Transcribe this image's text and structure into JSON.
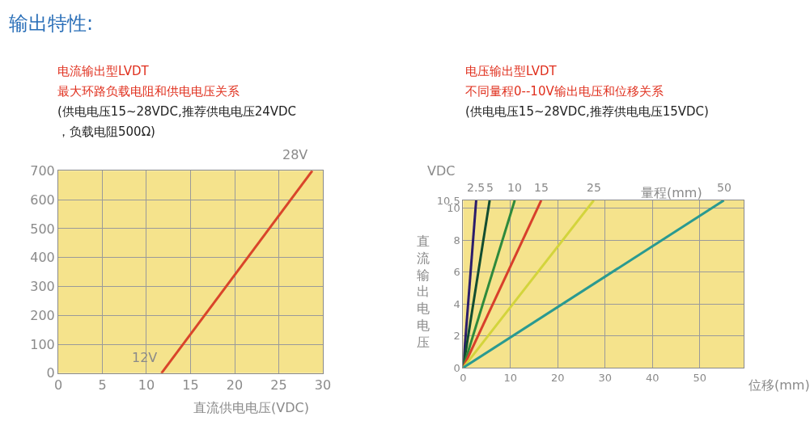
{
  "chart_data": [
    {
      "type": "line",
      "title": "电流输出型LVDT",
      "subtitle": "最大环路负载电阻和供电电压关系",
      "xlabel": "直流供电电压(VDC)",
      "annotations": [
        "输出特性:",
        "(供电电压15~28VDC,推荐供电电压24VDC",
        "，负载电阻500Ω)",
        {
          "text": "12V",
          "x": 11.7,
          "y": 0
        },
        {
          "text": "28V",
          "x": 28.8,
          "y": 700
        }
      ],
      "series": [
        {
          "color": "#d9452a",
          "x": [
            11.7,
            28.8
          ],
          "values": [
            0,
            700
          ]
        }
      ],
      "xlim": [
        0,
        30
      ],
      "xticks": [
        0,
        5,
        10,
        15,
        20,
        25,
        30
      ],
      "ylim": [
        0,
        700
      ],
      "yticks": [
        0,
        100,
        200,
        300,
        400,
        500,
        600,
        700
      ],
      "grid": true,
      "marker": "none",
      "line_style": "solid"
    },
    {
      "type": "line",
      "title": "电压输出型LVDT",
      "subtitle": "不同量程0--10V输出电压和位移关系",
      "xlabel": "位移(mm)",
      "ylabel": "直流输出电电压",
      "annotations": [
        "(供电电压15~28VDC,推荐供电电压15VDC)",
        "VDC",
        "量程(mm)"
      ],
      "series": [
        {
          "name": "2.5",
          "color": "#2b1d6b",
          "x": [
            0,
            2.75
          ],
          "values": [
            0,
            10.5
          ]
        },
        {
          "name": "5",
          "color": "#124d30",
          "x": [
            0,
            5.6
          ],
          "values": [
            0,
            10.5
          ]
        },
        {
          "name": "10",
          "color": "#2e8a3c",
          "x": [
            0,
            10.9
          ],
          "values": [
            0,
            10.5
          ]
        },
        {
          "name": "15",
          "color": "#d8402b",
          "x": [
            0,
            16.5
          ],
          "values": [
            0,
            10.5
          ]
        },
        {
          "name": "25",
          "color": "#d3d43c",
          "x": [
            0,
            27.6
          ],
          "values": [
            0,
            10.5
          ]
        },
        {
          "name": "50",
          "color": "#2a9a91",
          "x": [
            0,
            55.1
          ],
          "values": [
            0,
            10.5
          ]
        }
      ],
      "xlim": [
        0,
        59.3
      ],
      "xticks": [
        0,
        10,
        20,
        30,
        40,
        50
      ],
      "ylim": [
        0,
        10.5
      ],
      "yticks": [
        0,
        2,
        4,
        6,
        8,
        10,
        10.5
      ],
      "grid": true,
      "marker": "none",
      "line_style": "solid"
    }
  ]
}
